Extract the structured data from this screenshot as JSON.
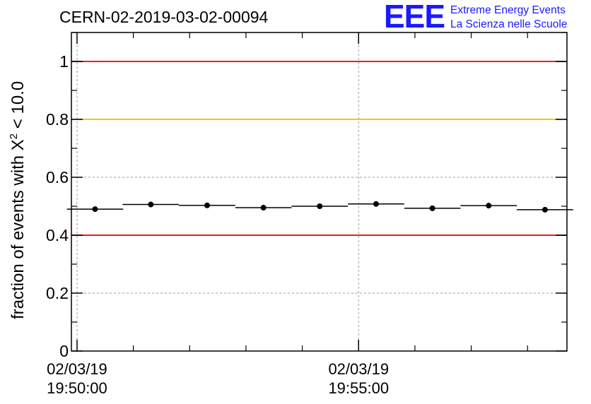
{
  "header": {
    "title": "CERN-02-2019-03-02-00094",
    "logo_text": "EEE",
    "logo_line1": "Extreme Energy Events",
    "logo_line2": "La Scienza nelle Scuole"
  },
  "colors": {
    "logo": "#1a1aff",
    "red_line": "#e8201c",
    "yellow_line": "#ffc400",
    "data": "#000000",
    "grid": "#9a9a9a"
  },
  "chart_data": {
    "type": "scatter",
    "title": "CERN-02-2019-03-02-00094",
    "ylabel_main": "fraction of events with X",
    "ylabel_sup": "2",
    "ylabel_tail": " < 10.0",
    "ylim": [
      0,
      1.1
    ],
    "yticks": [
      {
        "v": 0,
        "label": "0"
      },
      {
        "v": 0.2,
        "label": "0.2"
      },
      {
        "v": 0.4,
        "label": "0.4"
      },
      {
        "v": 0.6,
        "label": "0.6"
      },
      {
        "v": 0.8,
        "label": "0.8"
      },
      {
        "v": 1.0,
        "label": "1"
      }
    ],
    "xrange_minutes": [
      -0.1,
      8.7
    ],
    "xticks": [
      {
        "t": 0,
        "date": "02/03/19",
        "time": "19:50:00"
      },
      {
        "t": 5,
        "date": "02/03/19",
        "time": "19:55:00"
      }
    ],
    "minor_x_step_minutes": 1,
    "grid": true,
    "reference_lines": [
      {
        "value": 1.0,
        "color": "#e8201c"
      },
      {
        "value": 0.8,
        "color": "#ffc400"
      },
      {
        "value": 0.4,
        "color": "#e8201c"
      }
    ],
    "bin_width_minutes": 1,
    "points": [
      {
        "t": 0.32,
        "y": 0.49
      },
      {
        "t": 1.31,
        "y": 0.506
      },
      {
        "t": 2.31,
        "y": 0.503
      },
      {
        "t": 3.31,
        "y": 0.495
      },
      {
        "t": 4.31,
        "y": 0.5
      },
      {
        "t": 5.31,
        "y": 0.508
      },
      {
        "t": 6.31,
        "y": 0.493
      },
      {
        "t": 7.31,
        "y": 0.502
      },
      {
        "t": 8.31,
        "y": 0.488
      }
    ]
  }
}
